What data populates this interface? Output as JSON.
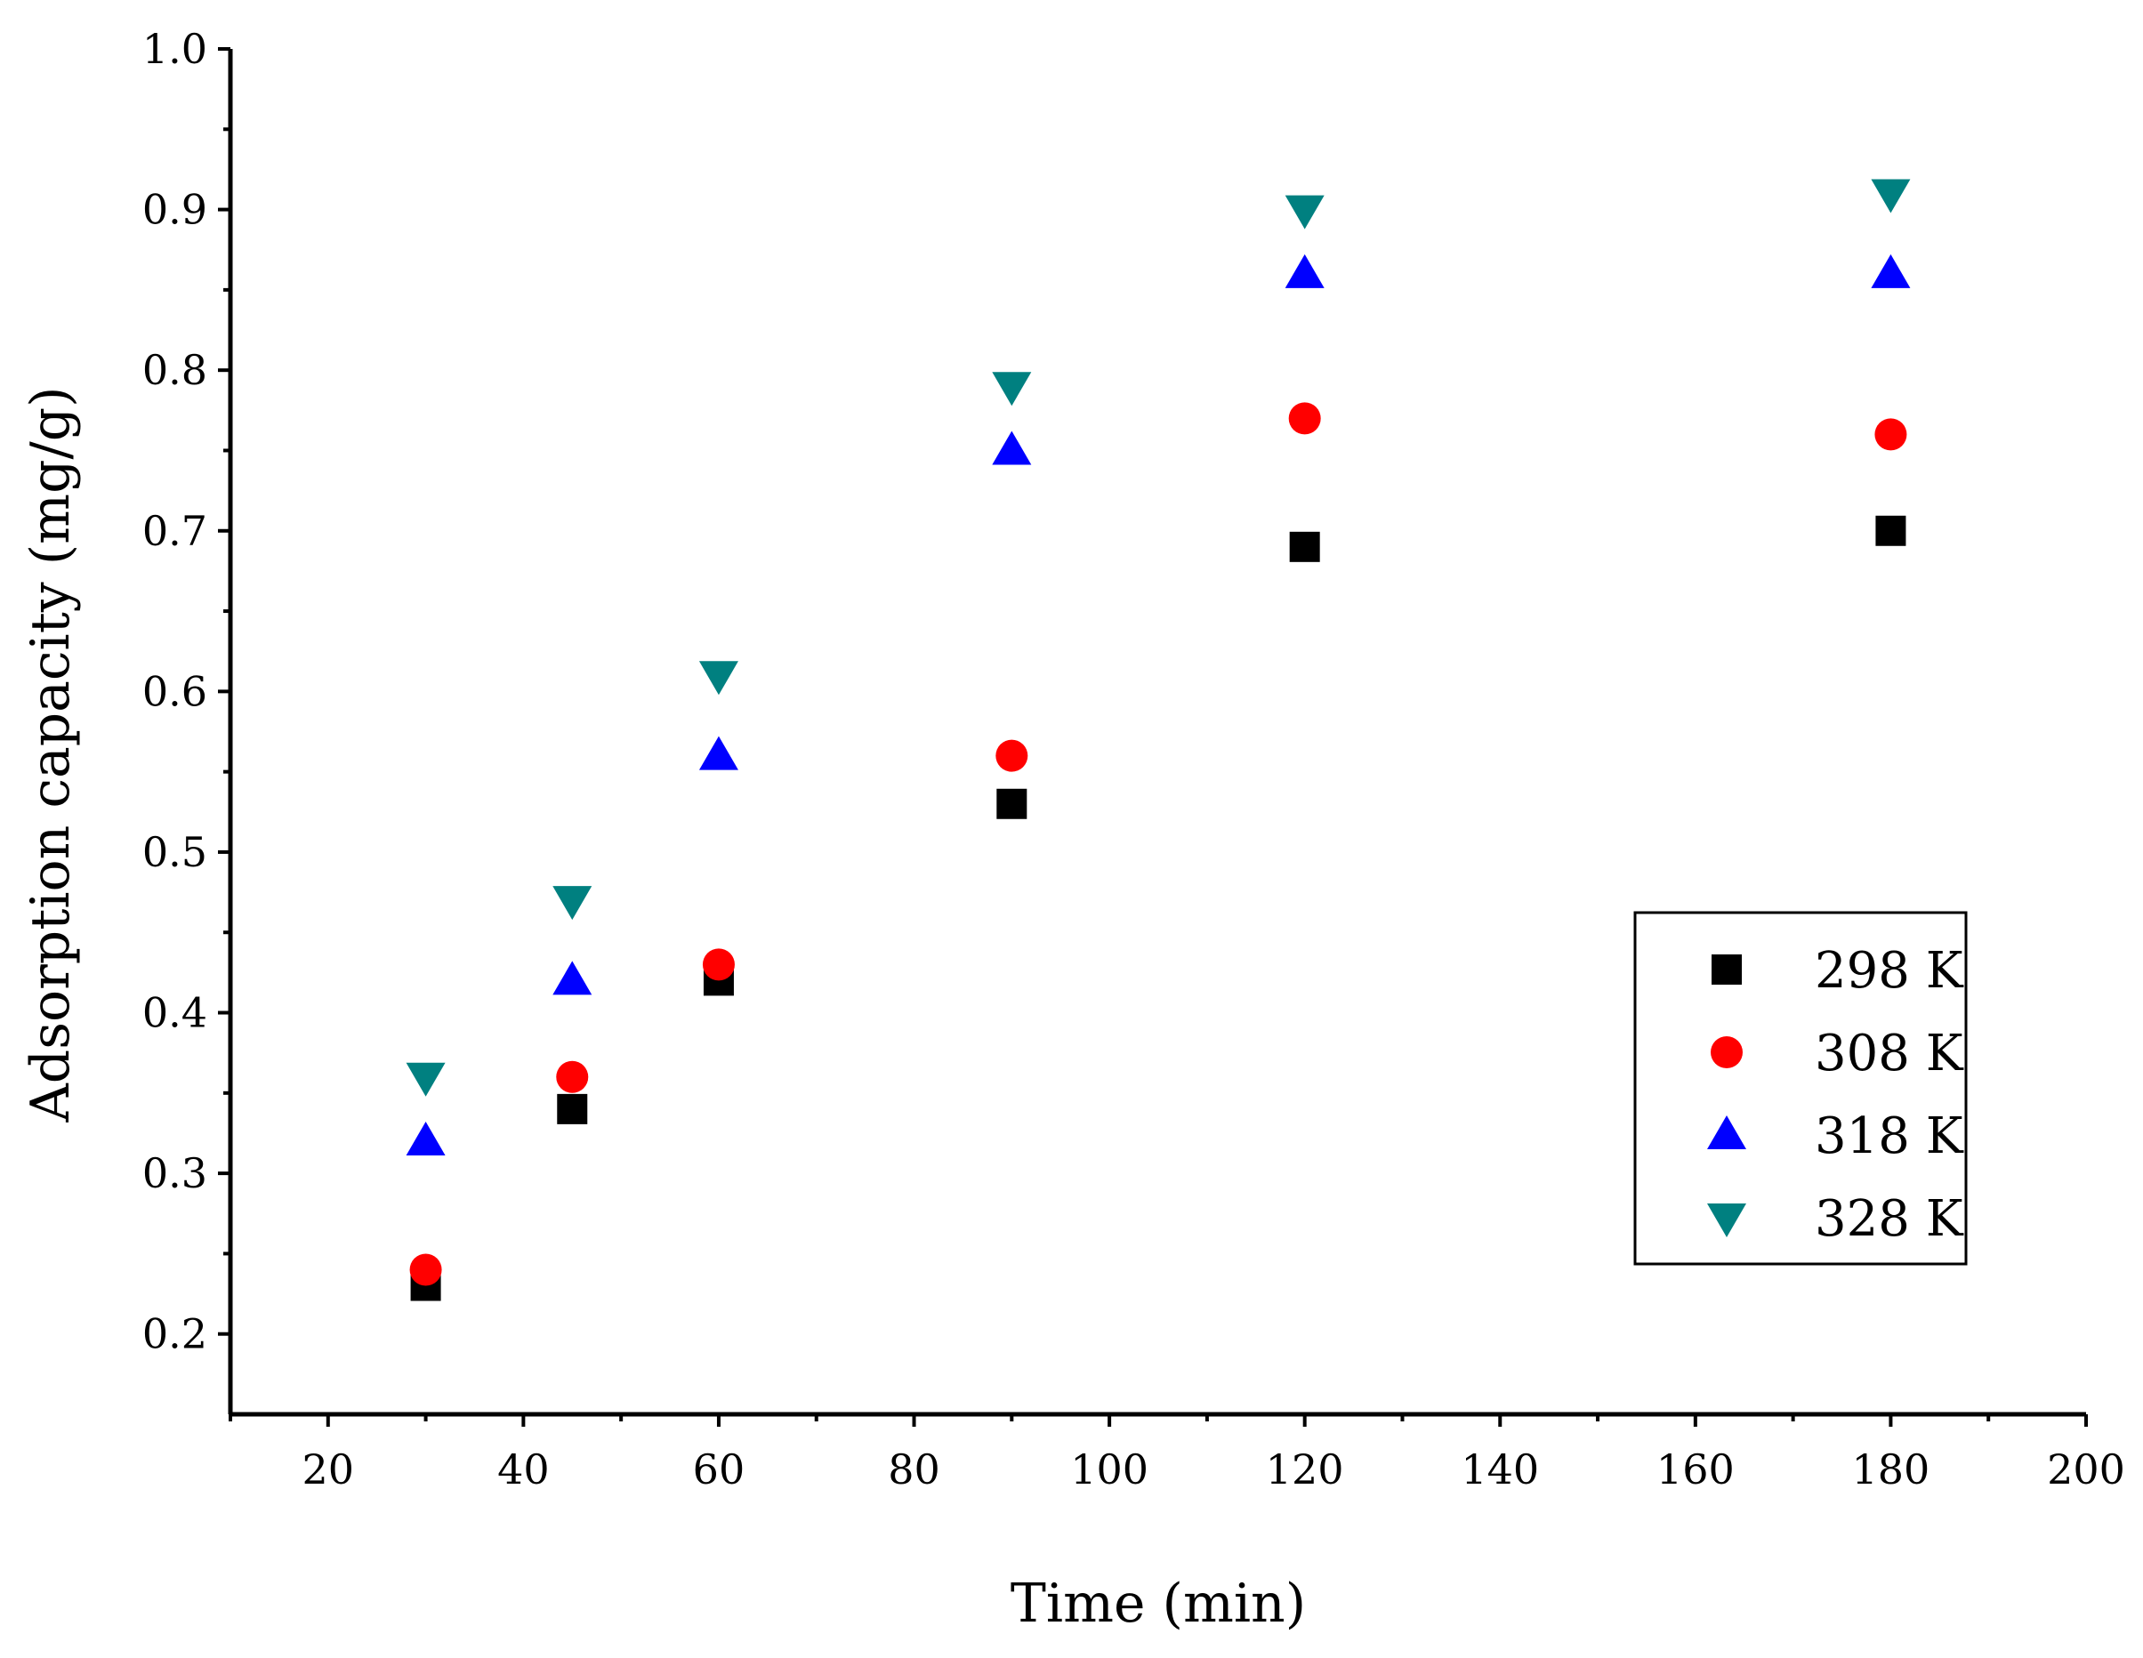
{
  "chart_data": {
    "type": "scatter",
    "title": "",
    "xlabel": "Time (min)",
    "ylabel": "Adsorption capacity (mg/g)",
    "xlim": [
      10,
      200
    ],
    "ylim": [
      0.15,
      1.0
    ],
    "x_ticks": [
      20,
      40,
      60,
      80,
      100,
      120,
      140,
      160,
      180,
      200
    ],
    "x_tick_labels": [
      "20",
      "40",
      "60",
      "80",
      "100",
      "120",
      "140",
      "160",
      "180",
      "200"
    ],
    "y_ticks": [
      0.2,
      0.3,
      0.4,
      0.5,
      0.6,
      0.7,
      0.8,
      0.9,
      1.0
    ],
    "y_tick_labels": [
      "0.2",
      "0.3",
      "0.4",
      "0.5",
      "0.6",
      "0.7",
      "0.8",
      "0.9",
      "1.0"
    ],
    "x": [
      30,
      45,
      60,
      90,
      120,
      180
    ],
    "series": [
      {
        "name": "298 K",
        "marker": "square",
        "color": "#000000",
        "values": [
          0.23,
          0.34,
          0.42,
          0.53,
          0.69,
          0.7
        ]
      },
      {
        "name": "308 K",
        "marker": "circle",
        "color": "#ff0000",
        "values": [
          0.24,
          0.36,
          0.43,
          0.56,
          0.77,
          0.76
        ]
      },
      {
        "name": "318 K",
        "marker": "triangle-up",
        "color": "#0000ff",
        "values": [
          0.32,
          0.42,
          0.56,
          0.75,
          0.86,
          0.86
        ]
      },
      {
        "name": "328 K",
        "marker": "triangle-down",
        "color": "#008080",
        "values": [
          0.36,
          0.47,
          0.61,
          0.79,
          0.9,
          0.91
        ]
      }
    ],
    "legend": "right",
    "grid": false
  }
}
